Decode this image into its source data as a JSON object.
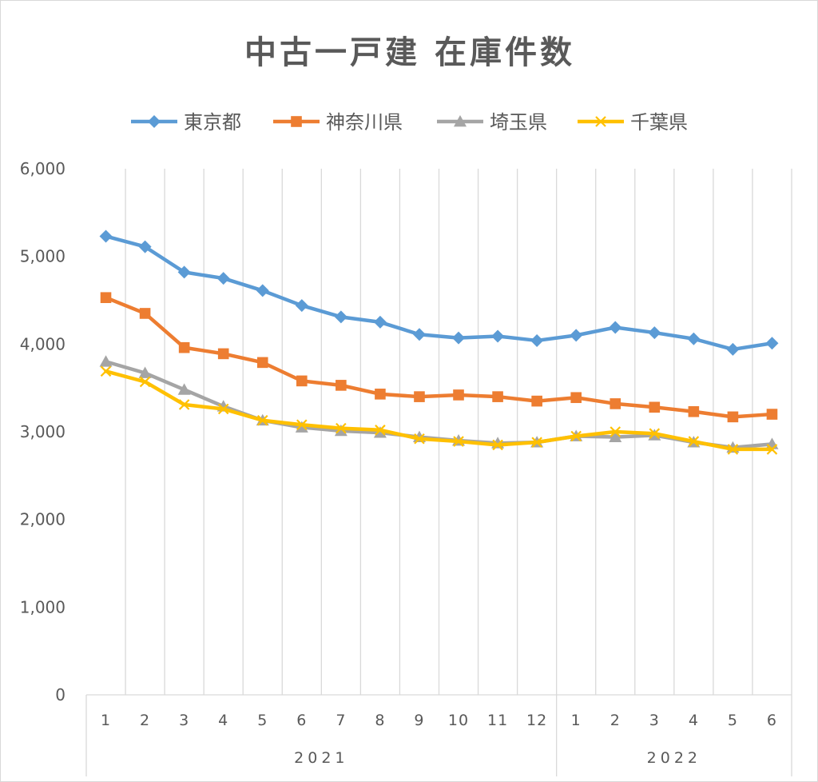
{
  "chart_data": {
    "type": "line",
    "title": "中古一戸建 在庫件数",
    "xlabel": "",
    "ylabel": "",
    "ylim": [
      0,
      6000
    ],
    "yticks": [
      "0",
      "1,000",
      "2,000",
      "3,000",
      "4,000",
      "5,000",
      "6,000"
    ],
    "x": [
      "1",
      "2",
      "3",
      "4",
      "5",
      "6",
      "7",
      "8",
      "9",
      "10",
      "11",
      "12",
      "1",
      "2",
      "3",
      "4",
      "5",
      "6"
    ],
    "year_groups": [
      {
        "label": "2021",
        "count": 12
      },
      {
        "label": "2022",
        "count": 6
      }
    ],
    "grid": "vertical",
    "legend_position": "top",
    "series": [
      {
        "name": "東京都",
        "color": "#5B9BD5",
        "marker": "diamond",
        "values": [
          5230,
          5110,
          4820,
          4750,
          4610,
          4440,
          4310,
          4250,
          4110,
          4070,
          4090,
          4040,
          4100,
          4190,
          4130,
          4060,
          3940,
          4010
        ]
      },
      {
        "name": "神奈川県",
        "color": "#ED7D31",
        "marker": "square",
        "values": [
          4530,
          4350,
          3960,
          3890,
          3790,
          3580,
          3530,
          3430,
          3400,
          3420,
          3400,
          3350,
          3390,
          3320,
          3280,
          3230,
          3170,
          3200
        ]
      },
      {
        "name": "埼玉県",
        "color": "#A5A5A5",
        "marker": "triangle",
        "values": [
          3800,
          3670,
          3480,
          3290,
          3130,
          3050,
          3010,
          2990,
          2940,
          2900,
          2870,
          2880,
          2950,
          2940,
          2960,
          2880,
          2820,
          2860
        ]
      },
      {
        "name": "千葉県",
        "color": "#FFC000",
        "marker": "x",
        "values": [
          3690,
          3570,
          3310,
          3260,
          3130,
          3080,
          3040,
          3020,
          2920,
          2890,
          2850,
          2880,
          2950,
          3000,
          2980,
          2890,
          2800,
          2800
        ]
      }
    ]
  }
}
